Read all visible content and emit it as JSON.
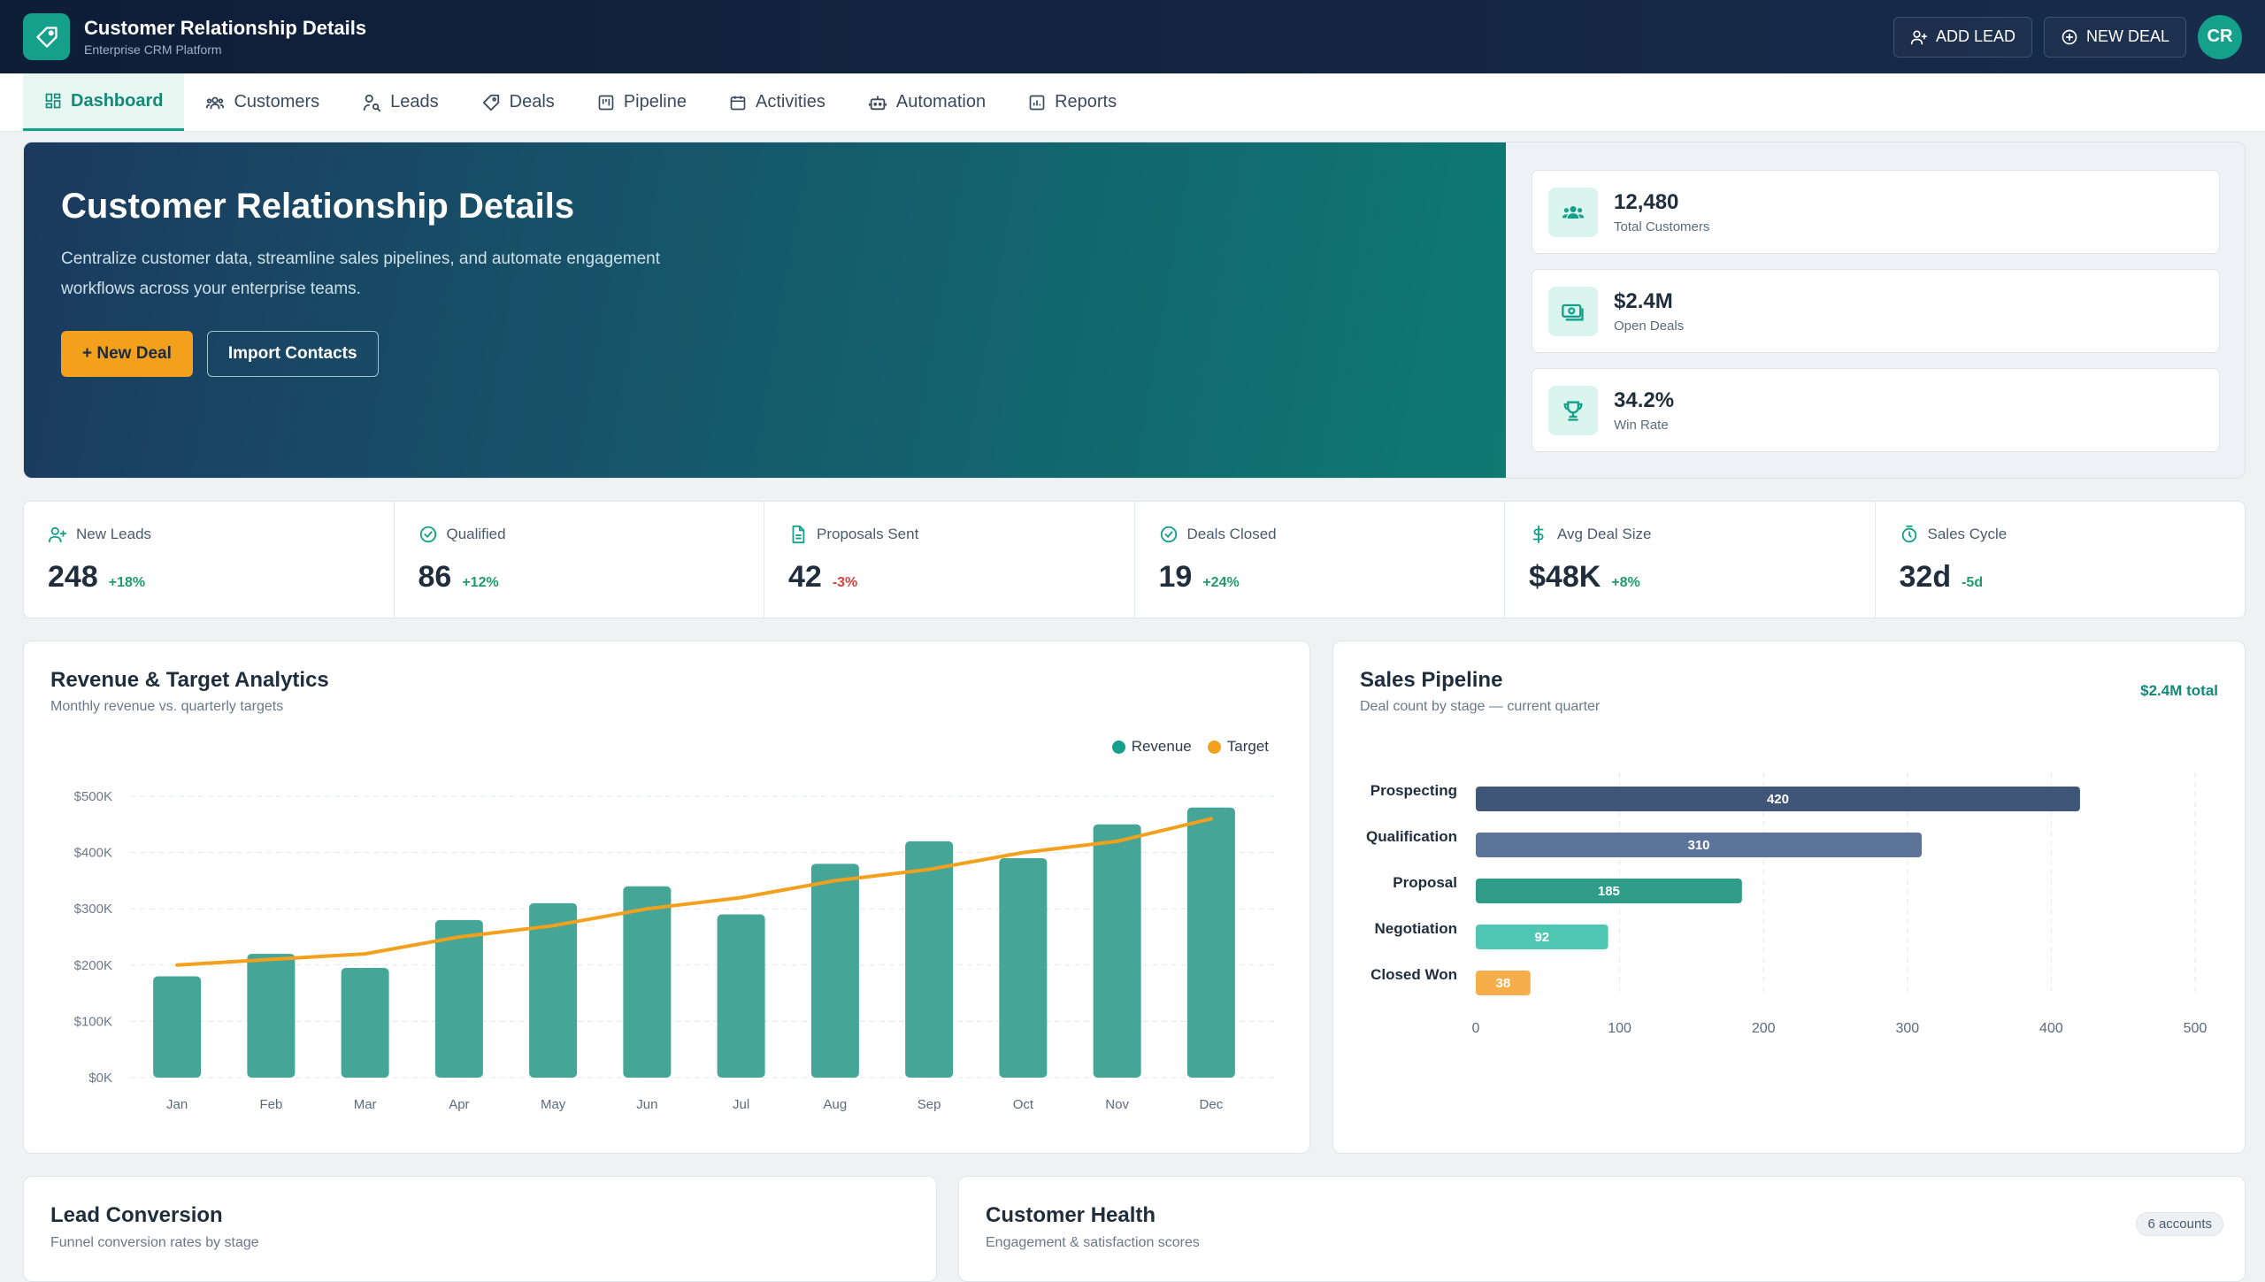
{
  "app": {
    "title": "Customer Relationship Details",
    "subtitle": "Enterprise CRM Platform",
    "add_lead_label": "ADD LEAD",
    "new_deal_label": "NEW DEAL",
    "avatar_initials": "CR"
  },
  "nav": {
    "items": [
      {
        "label": "Dashboard",
        "icon": "dashboard-icon",
        "active": true
      },
      {
        "label": "Customers",
        "icon": "users-icon"
      },
      {
        "label": "Leads",
        "icon": "user-search-icon"
      },
      {
        "label": "Deals",
        "icon": "tag-icon"
      },
      {
        "label": "Pipeline",
        "icon": "kanban-icon"
      },
      {
        "label": "Activities",
        "icon": "calendar-icon"
      },
      {
        "label": "Automation",
        "icon": "robot-icon"
      },
      {
        "label": "Reports",
        "icon": "report-icon"
      }
    ]
  },
  "hero": {
    "title": "Customer Relationship Details",
    "description": "Centralize customer data, streamline sales pipelines, and automate engagement workflows across your enterprise teams.",
    "primary_button": "+ New Deal",
    "secondary_button": "Import Contacts",
    "stats": [
      {
        "value": "12,480",
        "label": "Total Customers",
        "icon": "users-icon"
      },
      {
        "value": "$2.4M",
        "label": "Open Deals",
        "icon": "money-icon"
      },
      {
        "value": "34.2%",
        "label": "Win Rate",
        "icon": "trophy-icon"
      }
    ]
  },
  "kpis": [
    {
      "label": "New Leads",
      "value": "248",
      "delta": "+18%",
      "trend": "up",
      "icon": "user-plus-icon"
    },
    {
      "label": "Qualified",
      "value": "86",
      "delta": "+12%",
      "trend": "up",
      "icon": "check-circle-icon"
    },
    {
      "label": "Proposals Sent",
      "value": "42",
      "delta": "-3%",
      "trend": "down",
      "icon": "document-icon"
    },
    {
      "label": "Deals Closed",
      "value": "19",
      "delta": "+24%",
      "trend": "up",
      "icon": "check-circle-icon"
    },
    {
      "label": "Avg Deal Size",
      "value": "$48K",
      "delta": "+8%",
      "trend": "up",
      "icon": "dollar-icon"
    },
    {
      "label": "Sales Cycle",
      "value": "32d",
      "delta": "-5d",
      "trend": "up",
      "icon": "timer-icon"
    }
  ],
  "revenue_panel": {
    "title": "Revenue & Target Analytics",
    "subtitle": "Monthly revenue vs. quarterly targets"
  },
  "pipeline_panel": {
    "title": "Sales Pipeline",
    "subtitle": "Deal count by stage — current quarter",
    "total": "$2.4M total"
  },
  "lead_panel": {
    "title": "Lead Conversion",
    "subtitle": "Funnel conversion rates by stage"
  },
  "health_panel": {
    "title": "Customer Health",
    "subtitle": "Engagement & satisfaction scores",
    "badge": "6 accounts"
  },
  "colors": {
    "accent": "#14a08b",
    "revenue_bar": "#45a698",
    "target_line": "#f3a01d",
    "up": "#1e9c6b",
    "down": "#d94040"
  },
  "chart_data": [
    {
      "type": "bar",
      "categories": [
        "Jan",
        "Feb",
        "Mar",
        "Apr",
        "May",
        "Jun",
        "Jul",
        "Aug",
        "Sep",
        "Oct",
        "Nov",
        "Dec"
      ],
      "series": [
        {
          "name": "Revenue",
          "type": "bar",
          "values": [
            180,
            220,
            195,
            280,
            310,
            340,
            290,
            380,
            420,
            390,
            450,
            480
          ]
        },
        {
          "name": "Target",
          "type": "line",
          "values": [
            200,
            210,
            220,
            250,
            270,
            300,
            320,
            350,
            370,
            400,
            420,
            460
          ]
        }
      ],
      "y_ticks": [
        "$0K",
        "$100K",
        "$200K",
        "$300K",
        "$400K",
        "$500K"
      ],
      "ylim": [
        0,
        500
      ],
      "grid": true,
      "legend": "top-right"
    },
    {
      "type": "bar",
      "orientation": "horizontal",
      "categories": [
        "Prospecting",
        "Qualification",
        "Proposal",
        "Negotiation",
        "Closed Won"
      ],
      "values": [
        420,
        310,
        185,
        92,
        38
      ],
      "bar_colors": [
        "#3f5678",
        "#5c7499",
        "#2e9c87",
        "#4fc6b2",
        "#f5ae4a"
      ],
      "x_ticks": [
        "0",
        "100",
        "200",
        "300",
        "400",
        "500"
      ],
      "xlim": [
        0,
        500
      ],
      "grid": true
    }
  ]
}
